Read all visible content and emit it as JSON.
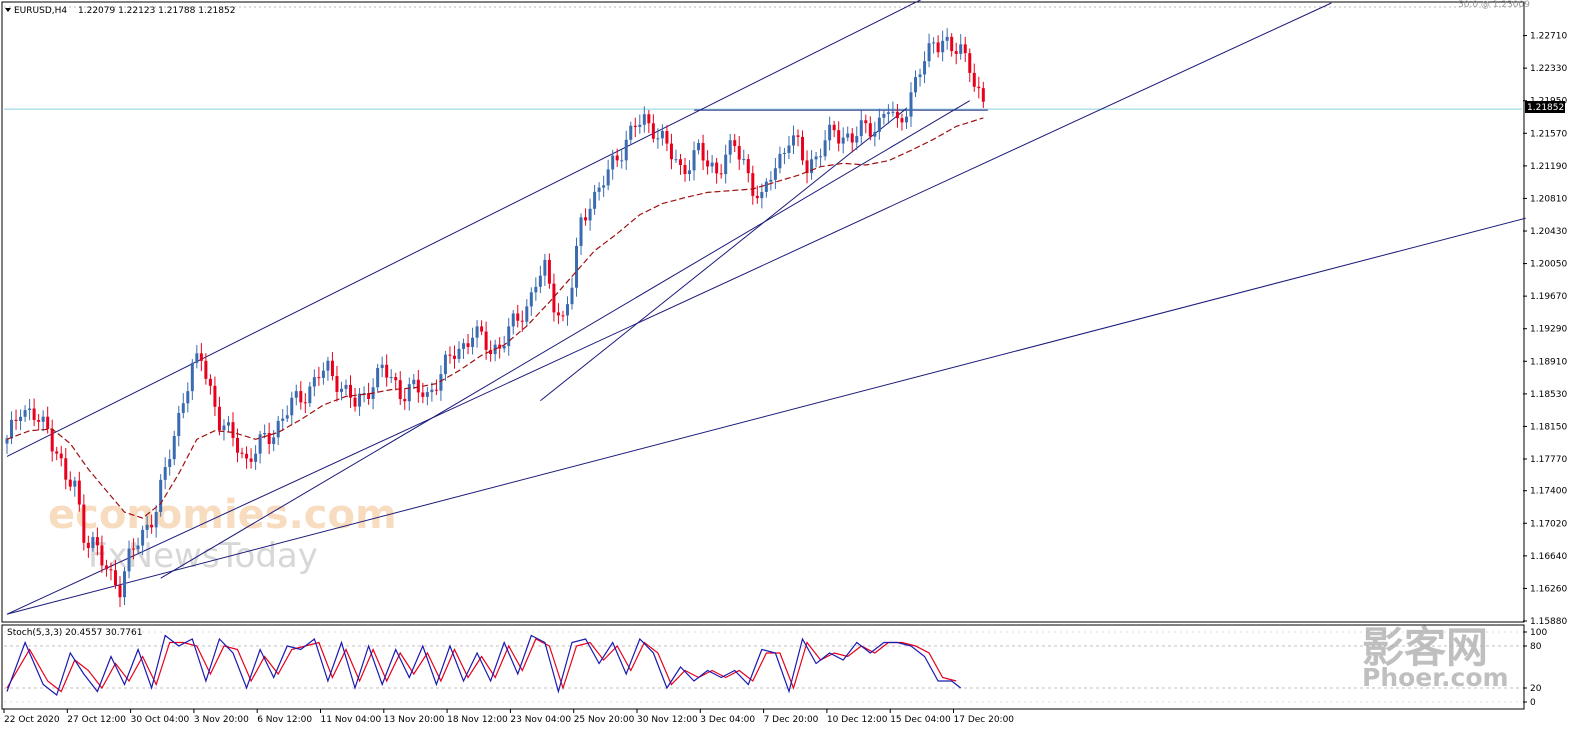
{
  "header": {
    "symbol_label": "EURUSD,H4",
    "ohlc_label": "1.22079 1.22123 1.21788 1.21852",
    "fib_label": "50.0 @ 1.23009"
  },
  "stoch_header": {
    "label": "Stoch(5,3,3) 20.4557 30.7761"
  },
  "watermarks": {
    "brand_primary": "economies.com",
    "brand_secondary": "FxNewsToday",
    "corner_cn": "影客网",
    "corner_en": "Phoer.com"
  },
  "colors": {
    "bull": "#3a6bb0",
    "bear": "#e8001c",
    "trendline": "#1a1a7a",
    "ma": "#a01010",
    "bid_line": "#87d3e0",
    "stoch_main": "#1a1ab0",
    "stoch_signal": "#e8001c",
    "grid": "#c0c0c0"
  },
  "chart_data": {
    "type": "candlestick",
    "symbol": "EURUSD",
    "timeframe": "H4",
    "last_price": "1.21852",
    "ylim": [
      1.1588,
      1.2309
    ],
    "price_ticks": [
      "1.22710",
      "1.22330",
      "1.21950",
      "1.21570",
      "1.21190",
      "1.20810",
      "1.20430",
      "1.20050",
      "1.19670",
      "1.19290",
      "1.18910",
      "1.18530",
      "1.18150",
      "1.17770",
      "1.17400",
      "1.17020",
      "1.16640",
      "1.16260",
      "1.15880"
    ],
    "x_labels": [
      "22 Oct 2020",
      "27 Oct 12:00",
      "30 Oct 04:00",
      "3 Nov 20:00",
      "6 Nov 12:00",
      "11 Nov 04:00",
      "13 Nov 20:00",
      "18 Nov 12:00",
      "23 Nov 04:00",
      "25 Nov 20:00",
      "30 Nov 12:00",
      "3 Dec 04:00",
      "7 Dec 20:00",
      "10 Dec 12:00",
      "15 Dec 04:00",
      "17 Dec 20:00"
    ],
    "close_path": [
      [
        0,
        1.1795
      ],
      [
        3,
        1.184
      ],
      [
        6,
        1.1825
      ],
      [
        9,
        1.181
      ],
      [
        11,
        1.179
      ],
      [
        13,
        1.175
      ],
      [
        15,
        1.1745
      ],
      [
        17,
        1.169
      ],
      [
        19,
        1.168
      ],
      [
        21,
        1.1655
      ],
      [
        23,
        1.164
      ],
      [
        25,
        1.163
      ],
      [
        27,
        1.166
      ],
      [
        29,
        1.168
      ],
      [
        31,
        1.17
      ],
      [
        33,
        1.172
      ],
      [
        35,
        1.176
      ],
      [
        37,
        1.1805
      ],
      [
        39,
        1.185
      ],
      [
        41,
        1.188
      ],
      [
        43,
        1.1895
      ],
      [
        45,
        1.186
      ],
      [
        47,
        1.182
      ],
      [
        49,
        1.1805
      ],
      [
        51,
        1.1795
      ],
      [
        53,
        1.1775
      ],
      [
        55,
        1.1785
      ],
      [
        57,
        1.18
      ],
      [
        59,
        1.181
      ],
      [
        61,
        1.1825
      ],
      [
        63,
        1.184
      ],
      [
        65,
        1.185
      ],
      [
        67,
        1.186
      ],
      [
        69,
        1.1875
      ],
      [
        71,
        1.188
      ],
      [
        73,
        1.187
      ],
      [
        75,
        1.1855
      ],
      [
        77,
        1.184
      ],
      [
        79,
        1.185
      ],
      [
        81,
        1.187
      ],
      [
        83,
        1.188
      ],
      [
        85,
        1.187
      ],
      [
        87,
        1.1855
      ],
      [
        89,
        1.186
      ],
      [
        91,
        1.1855
      ],
      [
        93,
        1.185
      ],
      [
        95,
        1.187
      ],
      [
        97,
        1.1885
      ],
      [
        99,
        1.19
      ],
      [
        101,
        1.191
      ],
      [
        103,
        1.1925
      ],
      [
        105,
        1.1915
      ],
      [
        107,
        1.1905
      ],
      [
        109,
        1.191
      ],
      [
        111,
        1.1925
      ],
      [
        113,
        1.194
      ],
      [
        115,
        1.1955
      ],
      [
        117,
        1.1985
      ],
      [
        119,
        1.1995
      ],
      [
        121,
        1.196
      ],
      [
        123,
        1.194
      ],
      [
        125,
        1.198
      ],
      [
        127,
        1.205
      ],
      [
        129,
        1.208
      ],
      [
        131,
        1.209
      ],
      [
        133,
        1.211
      ],
      [
        135,
        1.213
      ],
      [
        137,
        1.215
      ],
      [
        139,
        1.2165
      ],
      [
        141,
        1.217
      ],
      [
        143,
        1.2165
      ],
      [
        145,
        1.215
      ],
      [
        147,
        1.213
      ],
      [
        149,
        1.2115
      ],
      [
        151,
        1.2125
      ],
      [
        153,
        1.2135
      ],
      [
        155,
        1.212
      ],
      [
        157,
        1.2115
      ],
      [
        159,
        1.213
      ],
      [
        161,
        1.214
      ],
      [
        163,
        1.2125
      ],
      [
        165,
        1.2095
      ],
      [
        167,
        1.2075
      ],
      [
        169,
        1.211
      ],
      [
        171,
        1.213
      ],
      [
        173,
        1.215
      ],
      [
        175,
        1.214
      ],
      [
        177,
        1.212
      ],
      [
        179,
        1.213
      ],
      [
        181,
        1.2145
      ],
      [
        183,
        1.216
      ],
      [
        185,
        1.2155
      ],
      [
        187,
        1.215
      ],
      [
        189,
        1.216
      ],
      [
        191,
        1.2165
      ],
      [
        193,
        1.217
      ],
      [
        195,
        1.2185
      ],
      [
        197,
        1.2165
      ],
      [
        199,
        1.219
      ],
      [
        201,
        1.2215
      ],
      [
        203,
        1.224
      ],
      [
        205,
        1.2265
      ],
      [
        207,
        1.2268
      ],
      [
        209,
        1.225
      ],
      [
        211,
        1.2255
      ],
      [
        213,
        1.224
      ],
      [
        215,
        1.22
      ],
      [
        216,
        1.2185
      ]
    ],
    "ma_path": [
      [
        0,
        1.18
      ],
      [
        5,
        1.181
      ],
      [
        10,
        1.1812
      ],
      [
        14,
        1.1795
      ],
      [
        18,
        1.1765
      ],
      [
        22,
        1.174
      ],
      [
        26,
        1.1715
      ],
      [
        30,
        1.1708
      ],
      [
        34,
        1.1725
      ],
      [
        38,
        1.176
      ],
      [
        42,
        1.18
      ],
      [
        46,
        1.181
      ],
      [
        50,
        1.1808
      ],
      [
        55,
        1.18
      ],
      [
        60,
        1.1808
      ],
      [
        65,
        1.1823
      ],
      [
        70,
        1.184
      ],
      [
        75,
        1.185
      ],
      [
        80,
        1.1853
      ],
      [
        85,
        1.1858
      ],
      [
        90,
        1.186
      ],
      [
        95,
        1.1865
      ],
      [
        100,
        1.188
      ],
      [
        105,
        1.1898
      ],
      [
        110,
        1.191
      ],
      [
        115,
        1.1932
      ],
      [
        120,
        1.196
      ],
      [
        125,
        1.199
      ],
      [
        130,
        1.202
      ],
      [
        135,
        1.204
      ],
      [
        140,
        1.2062
      ],
      [
        145,
        1.2075
      ],
      [
        150,
        1.2082
      ],
      [
        155,
        1.2088
      ],
      [
        160,
        1.209
      ],
      [
        165,
        1.2092
      ],
      [
        170,
        1.21
      ],
      [
        175,
        1.2108
      ],
      [
        180,
        1.2118
      ],
      [
        185,
        1.2122
      ],
      [
        190,
        1.212
      ],
      [
        195,
        1.2125
      ],
      [
        200,
        1.2137
      ],
      [
        205,
        1.215
      ],
      [
        210,
        1.2165
      ],
      [
        216,
        1.2175
      ]
    ],
    "stoch_main": [
      [
        0,
        15
      ],
      [
        4,
        85
      ],
      [
        8,
        25
      ],
      [
        11,
        10
      ],
      [
        14,
        70
      ],
      [
        17,
        40
      ],
      [
        20,
        15
      ],
      [
        23,
        65
      ],
      [
        26,
        25
      ],
      [
        29,
        75
      ],
      [
        32,
        20
      ],
      [
        35,
        95
      ],
      [
        38,
        80
      ],
      [
        41,
        90
      ],
      [
        44,
        30
      ],
      [
        47,
        90
      ],
      [
        50,
        70
      ],
      [
        53,
        20
      ],
      [
        56,
        75
      ],
      [
        59,
        35
      ],
      [
        62,
        80
      ],
      [
        65,
        75
      ],
      [
        68,
        90
      ],
      [
        71,
        30
      ],
      [
        74,
        85
      ],
      [
        77,
        20
      ],
      [
        80,
        80
      ],
      [
        83,
        25
      ],
      [
        86,
        75
      ],
      [
        89,
        35
      ],
      [
        92,
        80
      ],
      [
        95,
        25
      ],
      [
        98,
        80
      ],
      [
        101,
        30
      ],
      [
        104,
        70
      ],
      [
        107,
        30
      ],
      [
        110,
        85
      ],
      [
        113,
        40
      ],
      [
        116,
        95
      ],
      [
        119,
        85
      ],
      [
        122,
        15
      ],
      [
        125,
        85
      ],
      [
        128,
        90
      ],
      [
        131,
        55
      ],
      [
        134,
        85
      ],
      [
        137,
        40
      ],
      [
        140,
        90
      ],
      [
        143,
        70
      ],
      [
        146,
        20
      ],
      [
        149,
        50
      ],
      [
        152,
        30
      ],
      [
        155,
        45
      ],
      [
        158,
        35
      ],
      [
        161,
        45
      ],
      [
        164,
        25
      ],
      [
        167,
        75
      ],
      [
        170,
        70
      ],
      [
        173,
        15
      ],
      [
        176,
        90
      ],
      [
        179,
        55
      ],
      [
        182,
        70
      ],
      [
        185,
        60
      ],
      [
        188,
        85
      ],
      [
        191,
        70
      ],
      [
        194,
        85
      ],
      [
        197,
        85
      ],
      [
        200,
        80
      ],
      [
        203,
        65
      ],
      [
        206,
        30
      ],
      [
        209,
        30
      ],
      [
        211,
        20
      ]
    ],
    "stoch_signal": [
      [
        0,
        20
      ],
      [
        5,
        75
      ],
      [
        9,
        30
      ],
      [
        12,
        15
      ],
      [
        15,
        60
      ],
      [
        18,
        45
      ],
      [
        21,
        20
      ],
      [
        24,
        55
      ],
      [
        27,
        30
      ],
      [
        30,
        65
      ],
      [
        33,
        25
      ],
      [
        36,
        85
      ],
      [
        39,
        85
      ],
      [
        42,
        80
      ],
      [
        45,
        40
      ],
      [
        48,
        80
      ],
      [
        51,
        75
      ],
      [
        54,
        30
      ],
      [
        57,
        65
      ],
      [
        60,
        40
      ],
      [
        63,
        75
      ],
      [
        66,
        80
      ],
      [
        69,
        85
      ],
      [
        72,
        35
      ],
      [
        75,
        75
      ],
      [
        78,
        30
      ],
      [
        81,
        75
      ],
      [
        84,
        30
      ],
      [
        87,
        70
      ],
      [
        90,
        40
      ],
      [
        93,
        70
      ],
      [
        96,
        30
      ],
      [
        99,
        75
      ],
      [
        102,
        35
      ],
      [
        105,
        65
      ],
      [
        108,
        35
      ],
      [
        111,
        80
      ],
      [
        114,
        45
      ],
      [
        117,
        90
      ],
      [
        120,
        80
      ],
      [
        123,
        20
      ],
      [
        126,
        80
      ],
      [
        129,
        85
      ],
      [
        132,
        60
      ],
      [
        135,
        80
      ],
      [
        138,
        45
      ],
      [
        141,
        85
      ],
      [
        144,
        70
      ],
      [
        147,
        25
      ],
      [
        150,
        45
      ],
      [
        153,
        35
      ],
      [
        156,
        45
      ],
      [
        159,
        35
      ],
      [
        162,
        45
      ],
      [
        165,
        30
      ],
      [
        168,
        70
      ],
      [
        171,
        70
      ],
      [
        174,
        20
      ],
      [
        177,
        85
      ],
      [
        180,
        60
      ],
      [
        183,
        70
      ],
      [
        186,
        65
      ],
      [
        189,
        80
      ],
      [
        192,
        70
      ],
      [
        195,
        85
      ],
      [
        198,
        85
      ],
      [
        201,
        80
      ],
      [
        204,
        70
      ],
      [
        207,
        35
      ],
      [
        210,
        30
      ]
    ],
    "stoch_ylim": [
      0,
      100
    ],
    "stoch_ticks": [
      "100",
      "80",
      "20",
      "0"
    ],
    "grid": false
  }
}
